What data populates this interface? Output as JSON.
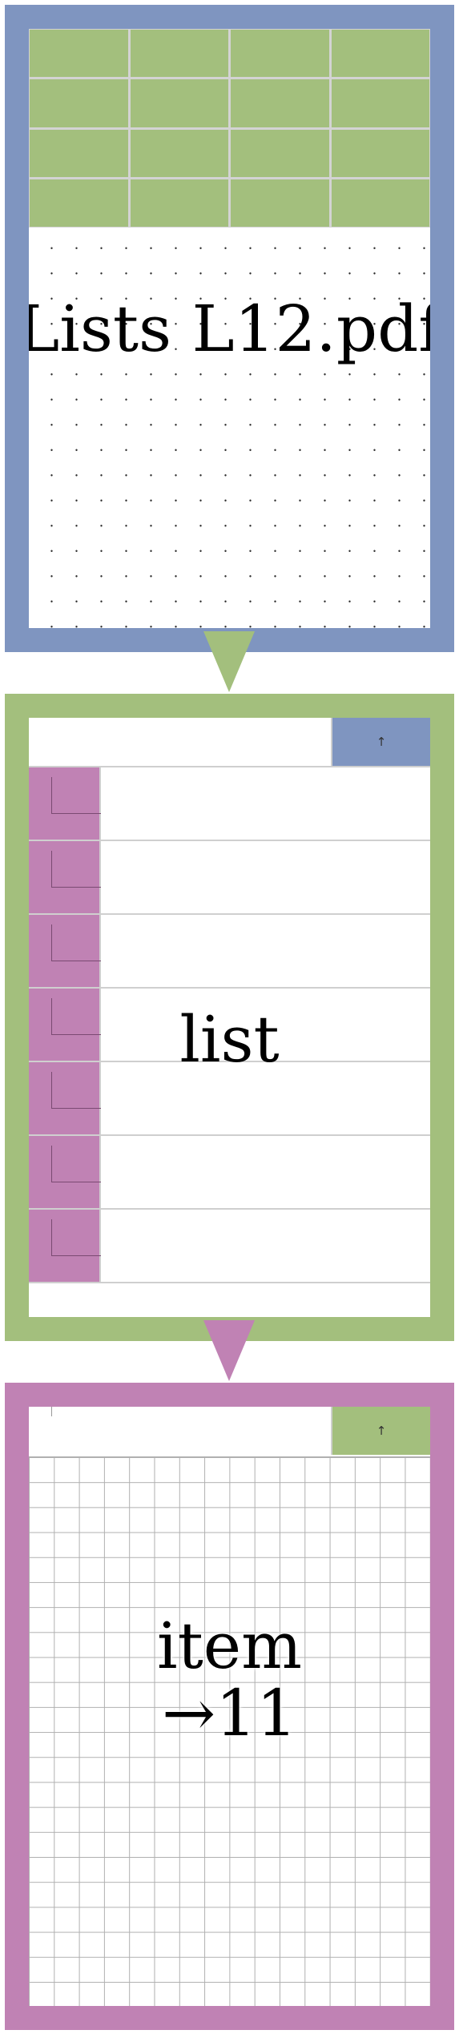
{
  "panels": [
    {
      "label": "Lists L12.pdf",
      "border_color": "#7f95c0",
      "header_color": "#a3bf7d"
    },
    {
      "label": "list",
      "border_color": "#a3bf7d",
      "up_button": "↑",
      "up_button_color": "#7f95c0",
      "row_count": 7,
      "row_handle_color": "#c082b4"
    },
    {
      "label": "item\n→11",
      "border_color": "#c082b4",
      "up_button": "↑",
      "up_button_color": "#a3bf7d"
    }
  ]
}
